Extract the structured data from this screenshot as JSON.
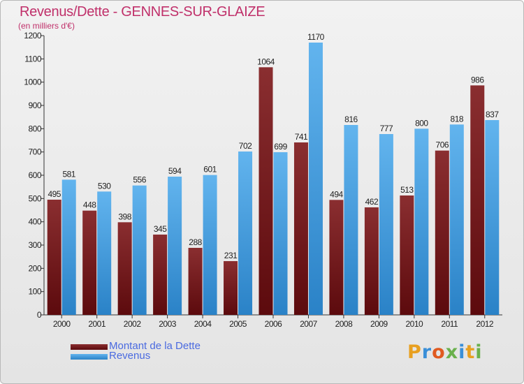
{
  "title": "Revenus/Dette - GENNES-SUR-GLAIZE",
  "subtitle": "(en milliers d'€)",
  "colors": {
    "title": "#c0306a",
    "dette_top": "#8a2e30",
    "dette_bottom": "#5c0a0d",
    "revenus_top": "#62b4ee",
    "revenus_bottom": "#2a82c7",
    "legend_text": "#4a6ae0"
  },
  "chart_data": {
    "type": "bar",
    "title": "Revenus/Dette - GENNES-SUR-GLAIZE",
    "ylabel": "(en milliers d'€)",
    "xlabel": "",
    "ylim": [
      0,
      1200
    ],
    "yticks": [
      0,
      100,
      200,
      300,
      400,
      500,
      600,
      700,
      800,
      900,
      1000,
      1100,
      1200
    ],
    "grid": false,
    "legend_position": "bottom-left",
    "categories": [
      "2000",
      "2001",
      "2002",
      "2003",
      "2004",
      "2005",
      "2006",
      "2007",
      "2008",
      "2009",
      "2010",
      "2011",
      "2012"
    ],
    "series": [
      {
        "name": "Montant de la Dette",
        "values": [
          495,
          448,
          398,
          345,
          288,
          231,
          1064,
          741,
          494,
          462,
          513,
          706,
          986
        ]
      },
      {
        "name": "Revenus",
        "values": [
          581,
          530,
          556,
          594,
          601,
          702,
          699,
          1170,
          816,
          777,
          800,
          818,
          837
        ]
      }
    ]
  },
  "legend": {
    "dette_label": "Montant de la Dette",
    "revenus_label": "Revenus"
  },
  "logo": {
    "letters": [
      "P",
      "r",
      "o",
      "x",
      "i",
      "t",
      "i"
    ],
    "colors": [
      "#e8a020",
      "#3a8fd8",
      "#e05a20",
      "#6ab04c",
      "#3a8fd8",
      "#e8a020",
      "#6ab04c"
    ]
  }
}
